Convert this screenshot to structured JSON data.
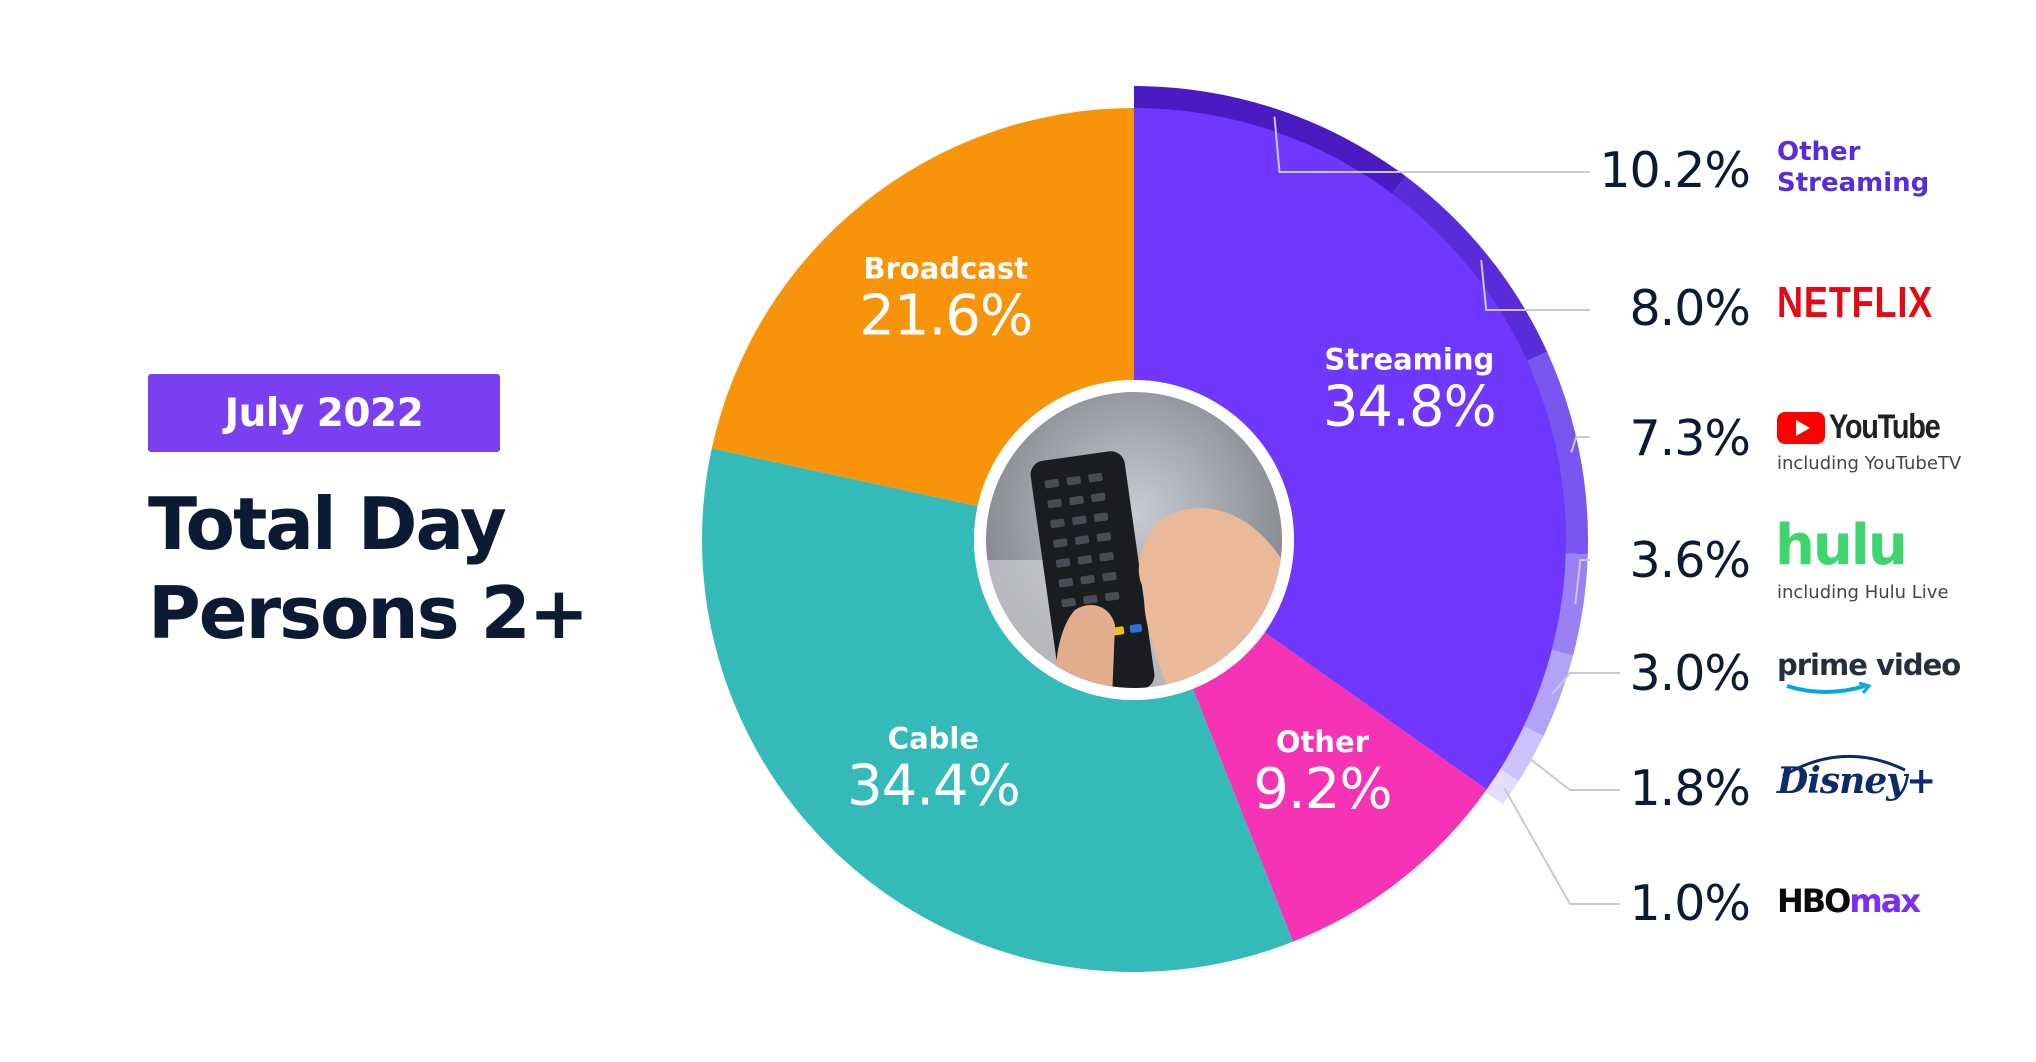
{
  "header": {
    "badge": "July 2022",
    "title_line1": "Total Day",
    "title_line2": "Persons 2+"
  },
  "colors": {
    "streaming": "#7037ff",
    "broadcast": "#f7940a",
    "cable": "#33bab9",
    "other": "#f533b4",
    "badge": "#7b3ff2",
    "title": "#0c1b33"
  },
  "chart_data": [
    {
      "type": "pie",
      "variant": "donut",
      "slices": [
        {
          "label": "Streaming",
          "value": 34.8,
          "display": "34.8%",
          "color": "#7037ff"
        },
        {
          "label": "Other",
          "value": 9.2,
          "display": "9.2%",
          "color": "#f533b4"
        },
        {
          "label": "Cable",
          "value": 34.4,
          "display": "34.4%",
          "color": "#33bab9"
        },
        {
          "label": "Broadcast",
          "value": 21.6,
          "display": "21.6%",
          "color": "#f7940a"
        }
      ]
    },
    {
      "type": "pie",
      "variant": "outer-ring",
      "parent": "Streaming",
      "slices": [
        {
          "label": "Other Streaming",
          "value": 10.2,
          "display": "10.2%",
          "color": "#4a1bc2"
        },
        {
          "label": "NETFLIX",
          "value": 8.0,
          "display": "8.0%",
          "color": "#5a2bd8"
        },
        {
          "label": "YouTube",
          "sublabel": "including YouTubeTV",
          "value": 7.3,
          "display": "7.3%",
          "color": "#7a55f0"
        },
        {
          "label": "hulu",
          "sublabel": "including Hulu Live",
          "value": 3.6,
          "display": "3.6%",
          "color": "#9a80f5"
        },
        {
          "label": "prime video",
          "value": 3.0,
          "display": "3.0%",
          "color": "#b3a3f8"
        },
        {
          "label": "Disney+",
          "value": 1.8,
          "display": "1.8%",
          "color": "#cdc2fb"
        },
        {
          "label": "HBO max",
          "value": 1.0,
          "display": "1.0%",
          "color": "#e4defd"
        }
      ]
    }
  ]
}
